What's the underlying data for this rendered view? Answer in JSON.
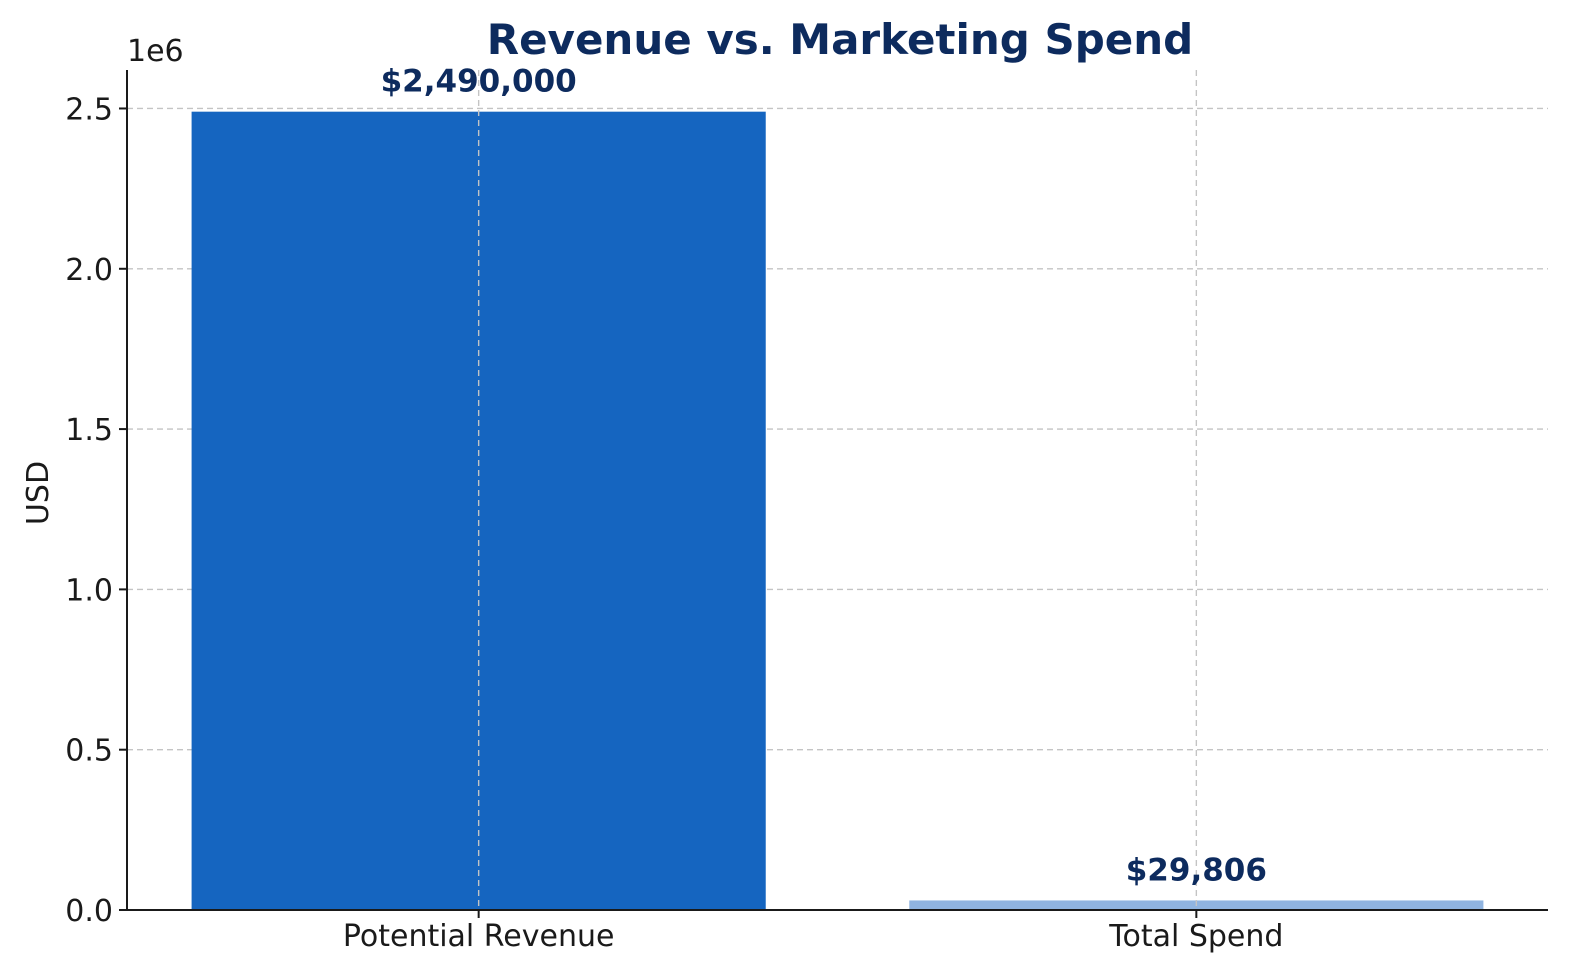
{
  "chart_data": {
    "type": "bar",
    "title": "Revenue vs. Marketing Spend",
    "xlabel": "",
    "ylabel": "USD",
    "offset_label": "1e6",
    "categories": [
      "Potential Revenue",
      "Total Spend"
    ],
    "values": [
      2490000,
      29806
    ],
    "data_labels": [
      "$2,490,000",
      "$29,806"
    ],
    "bar_colors": [
      "#1565C0",
      "#90B4E0"
    ],
    "title_color": "#0D2B5E",
    "label_color": "#0D2B5E",
    "ylim": [
      0,
      2620000
    ],
    "yticks": [
      0,
      500000,
      1000000,
      1500000,
      2000000,
      2500000
    ],
    "ytick_labels": [
      "0.0",
      "0.5",
      "1.0",
      "1.5",
      "2.0",
      "2.5"
    ],
    "grid": true,
    "legend": "none"
  }
}
